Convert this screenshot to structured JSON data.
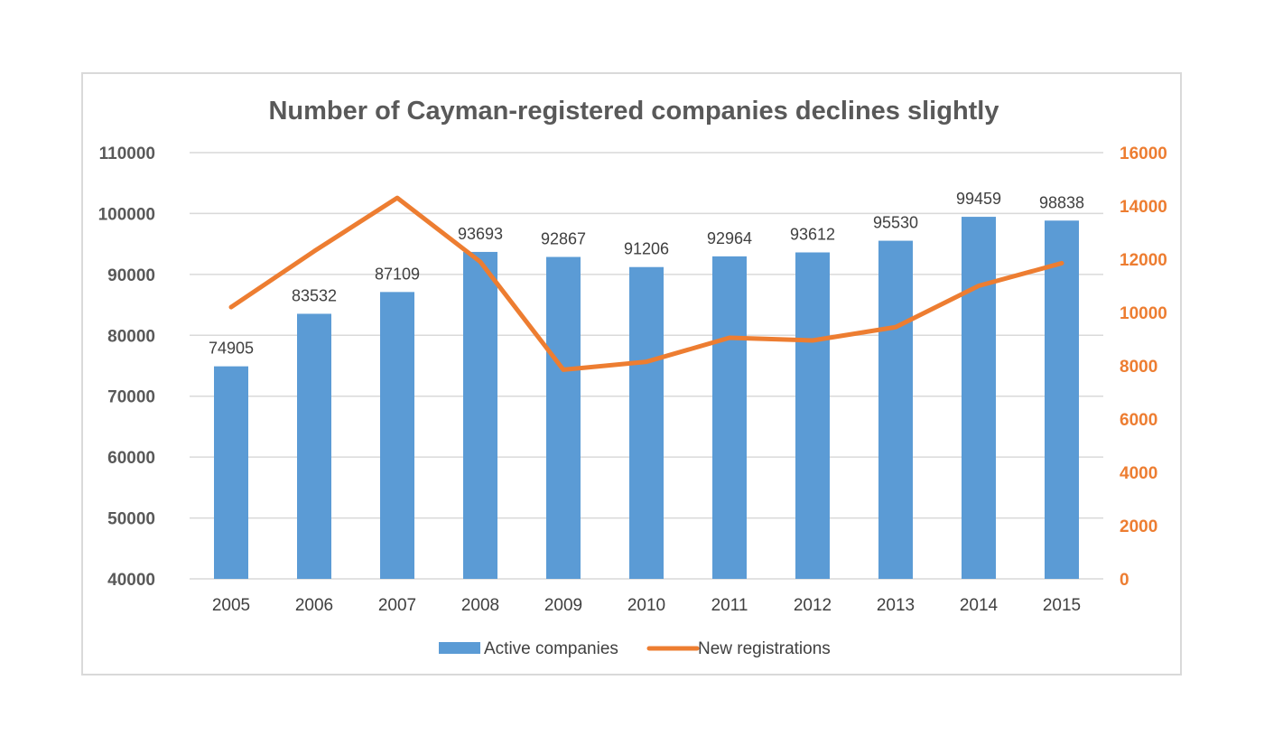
{
  "chart_data": {
    "type": "bar",
    "title": "Number of Cayman-registered companies declines slightly",
    "categories": [
      "2005",
      "2006",
      "2007",
      "2008",
      "2009",
      "2010",
      "2011",
      "2012",
      "2013",
      "2014",
      "2015"
    ],
    "series": [
      {
        "name": "Active companies",
        "type": "bar",
        "axis": "left",
        "color": "#5b9bd5",
        "values": [
          74905,
          83532,
          87109,
          93693,
          92867,
          91206,
          92964,
          93612,
          95530,
          99459,
          98838
        ]
      },
      {
        "name": "New registrations",
        "type": "line",
        "axis": "right",
        "color": "#ed7d31",
        "values": [
          10200,
          12300,
          14300,
          11900,
          7850,
          8150,
          9050,
          8950,
          9450,
          11000,
          11850
        ]
      }
    ],
    "y_left": {
      "min": 40000,
      "max": 110000,
      "ticks": [
        "40000",
        "50000",
        "60000",
        "70000",
        "80000",
        "90000",
        "100000",
        "110000"
      ]
    },
    "y_right": {
      "min": 0,
      "max": 16000,
      "ticks": [
        "0",
        "2000",
        "4000",
        "6000",
        "8000",
        "10000",
        "12000",
        "14000",
        "16000"
      ]
    },
    "grid": true,
    "legend_position": "bottom"
  }
}
